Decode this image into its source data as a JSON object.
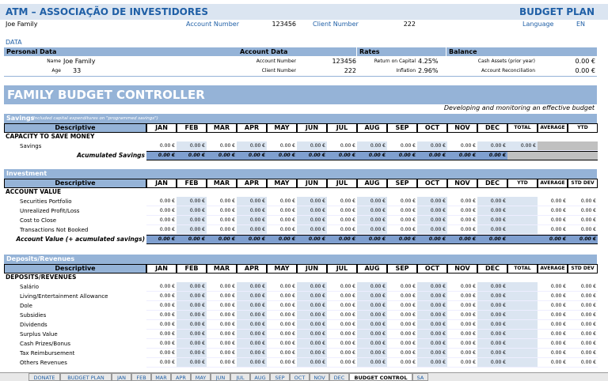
{
  "header": {
    "title": "ATM – ASSOCIAÇÃO DE INVESTIDORES",
    "plan": "BUDGET PLAN",
    "family": "Joe Family",
    "account_number_label": "Account Number",
    "account_number": 123456,
    "client_number_label": "Client Number",
    "client_number": 222,
    "language_label": "Language",
    "language": "EN"
  },
  "data_section": {
    "title": "DATA",
    "personal": {
      "title": "Personal Data",
      "name_label": "Name",
      "name": "Joe Family",
      "age_label": "Age",
      "age": 33
    },
    "account": {
      "title": "Account Data",
      "account_number_label": "Account Number",
      "account_number": 123456,
      "client_number_label": "Client Number",
      "client_number": 222
    },
    "rates": {
      "title": "Rates",
      "return_label": "Return on Capital",
      "return": "4.25%",
      "inflation_label": "Inflation",
      "inflation": "2.96%"
    },
    "balance": {
      "title": "Balance",
      "cash_label": "Cash Assets (prior year)",
      "cash": "0.00 €",
      "reconciliation_label": "Account Reconciliation",
      "reconciliation": "0.00 €"
    }
  },
  "banner": {
    "title": "FAMILY BUDGET CONTROLLER",
    "subtitle": "Developing and monitoring an effective budget"
  },
  "sections": [
    {
      "title": "Savings",
      "note": "(Included capital expenditures on \"programmed savings\")",
      "columns": [
        "Descriptive",
        "JAN",
        "FEB",
        "MAR",
        "APR",
        "MAY",
        "JUN",
        "JUL",
        "AUG",
        "SEP",
        "OCT",
        "NOV",
        "DEC",
        "TOTAL",
        "AVERAGE",
        "YTD"
      ],
      "group": "CAPACITY TO SAVE MONEY",
      "rows": [
        {
          "label": "Savings",
          "cells": [
            "0.00 €",
            "0.00 €",
            "0.00 €",
            "0.00 €",
            "0.00 €",
            "0.00 €",
            "0.00 €",
            "0.00 €",
            "0.00 €",
            "0.00 €",
            "0.00 €",
            "0.00 €",
            "0.00 €"
          ]
        }
      ],
      "total": {
        "label": "Acumulated Savings",
        "cells": [
          "0.00 €",
          "0.00 €",
          "0.00 €",
          "0.00 €",
          "0.00 €",
          "0.00 €",
          "0.00 €",
          "0.00 €",
          "0.00 €",
          "0.00 €",
          "0.00 €",
          "0.00 €"
        ]
      }
    },
    {
      "title": "Investment",
      "columns": [
        "Descriptive",
        "JAN",
        "FEB",
        "MAR",
        "APR",
        "MAY",
        "JUN",
        "JUL",
        "AUG",
        "SEP",
        "OCT",
        "NOV",
        "DEC",
        "YTD",
        "AVERAGE",
        "STD DEV"
      ],
      "group": "ACCOUNT VALUE",
      "rows": [
        {
          "label": "Securities Portfolio",
          "cells": [
            "0.00 €",
            "0.00 €",
            "0.00 €",
            "0.00 €",
            "0.00 €",
            "0.00 €",
            "0.00 €",
            "0.00 €",
            "0.00 €",
            "0.00 €",
            "0.00 €",
            "0.00 €",
            null,
            "0.00 €",
            "0.00 €"
          ]
        },
        {
          "label": "Unrealized Profit/Loss",
          "cells": [
            "0.00 €",
            "0.00 €",
            "0.00 €",
            "0.00 €",
            "0.00 €",
            "0.00 €",
            "0.00 €",
            "0.00 €",
            "0.00 €",
            "0.00 €",
            "0.00 €",
            "0.00 €",
            null,
            "0.00 €",
            "0.00 €"
          ]
        },
        {
          "label": "Cost to Close",
          "cells": [
            "0.00 €",
            "0.00 €",
            "0.00 €",
            "0.00 €",
            "0.00 €",
            "0.00 €",
            "0.00 €",
            "0.00 €",
            "0.00 €",
            "0.00 €",
            "0.00 €",
            "0.00 €",
            null,
            "0.00 €",
            "0.00 €"
          ]
        },
        {
          "label": "Transactions Not Booked",
          "cells": [
            "0.00 €",
            "0.00 €",
            "0.00 €",
            "0.00 €",
            "0.00 €",
            "0.00 €",
            "0.00 €",
            "0.00 €",
            "0.00 €",
            "0.00 €",
            "0.00 €",
            "0.00 €",
            null,
            "0.00 €",
            "0.00 €"
          ]
        }
      ],
      "total": {
        "label": "Account Value (+ acumulated savings)",
        "cells": [
          "0.00 €",
          "0.00 €",
          "0.00 €",
          "0.00 €",
          "0.00 €",
          "0.00 €",
          "0.00 €",
          "0.00 €",
          "0.00 €",
          "0.00 €",
          "0.00 €",
          "0.00 €",
          null,
          "0.00 €",
          "0.00 €"
        ]
      }
    },
    {
      "title": "Deposits/Revenues",
      "columns": [
        "Descriptive",
        "JAN",
        "FEB",
        "MAR",
        "APR",
        "MAY",
        "JUN",
        "JUL",
        "AUG",
        "SEP",
        "OCT",
        "NOV",
        "DEC",
        "TOTAL",
        "AVERAGE",
        "STD DEV"
      ],
      "group": "DEPOSITS/REVENUES",
      "rows": [
        {
          "label": "Salário",
          "cells": [
            "0.00 €",
            "0.00 €",
            "0.00 €",
            "0.00 €",
            "0.00 €",
            "0.00 €",
            "0.00 €",
            "0.00 €",
            "0.00 €",
            "0.00 €",
            "0.00 €",
            "0.00 €",
            null,
            "0.00 €",
            "0.00 €"
          ]
        },
        {
          "label": "Living/Entertainment Allowance",
          "cells": [
            "0.00 €",
            "0.00 €",
            "0.00 €",
            "0.00 €",
            "0.00 €",
            "0.00 €",
            "0.00 €",
            "0.00 €",
            "0.00 €",
            "0.00 €",
            "0.00 €",
            "0.00 €",
            null,
            "0.00 €",
            "0.00 €"
          ]
        },
        {
          "label": "Dole",
          "cells": [
            "0.00 €",
            "0.00 €",
            "0.00 €",
            "0.00 €",
            "0.00 €",
            "0.00 €",
            "0.00 €",
            "0.00 €",
            "0.00 €",
            "0.00 €",
            "0.00 €",
            "0.00 €",
            null,
            "0.00 €",
            "0.00 €"
          ]
        },
        {
          "label": "Subsidies",
          "cells": [
            "0.00 €",
            "0.00 €",
            "0.00 €",
            "0.00 €",
            "0.00 €",
            "0.00 €",
            "0.00 €",
            "0.00 €",
            "0.00 €",
            "0.00 €",
            "0.00 €",
            "0.00 €",
            null,
            "0.00 €",
            "0.00 €"
          ]
        },
        {
          "label": "Dividends",
          "cells": [
            "0.00 €",
            "0.00 €",
            "0.00 €",
            "0.00 €",
            "0.00 €",
            "0.00 €",
            "0.00 €",
            "0.00 €",
            "0.00 €",
            "0.00 €",
            "0.00 €",
            "0.00 €",
            null,
            "0.00 €",
            "0.00 €"
          ]
        },
        {
          "label": "Surplus Value",
          "cells": [
            "0.00 €",
            "0.00 €",
            "0.00 €",
            "0.00 €",
            "0.00 €",
            "0.00 €",
            "0.00 €",
            "0.00 €",
            "0.00 €",
            "0.00 €",
            "0.00 €",
            "0.00 €",
            null,
            "0.00 €",
            "0.00 €"
          ]
        },
        {
          "label": "Cash Prizes/Bonus",
          "cells": [
            "0.00 €",
            "0.00 €",
            "0.00 €",
            "0.00 €",
            "0.00 €",
            "0.00 €",
            "0.00 €",
            "0.00 €",
            "0.00 €",
            "0.00 €",
            "0.00 €",
            "0.00 €",
            null,
            "0.00 €",
            "0.00 €"
          ]
        },
        {
          "label": "Tax Reimbursement",
          "cells": [
            "0.00 €",
            "0.00 €",
            "0.00 €",
            "0.00 €",
            "0.00 €",
            "0.00 €",
            "0.00 €",
            "0.00 €",
            "0.00 €",
            "0.00 €",
            "0.00 €",
            "0.00 €",
            null,
            "0.00 €",
            "0.00 €"
          ]
        },
        {
          "label": "Others Revenues",
          "cells": [
            "0.00 €",
            "0.00 €",
            "0.00 €",
            "0.00 €",
            "0.00 €",
            "0.00 €",
            "0.00 €",
            "0.00 €",
            "0.00 €",
            "0.00 €",
            "0.00 €",
            "0.00 €",
            null,
            "0.00 €",
            "0.00 €"
          ]
        }
      ]
    }
  ],
  "tabs": [
    "DONATE",
    "BUDGET PLAN",
    "JAN",
    "FEB",
    "MAR",
    "APR",
    "MAY",
    "JUN",
    "JUL",
    "AUG",
    "SEP",
    "OCT",
    "NOV",
    "DEC",
    "BUDGET CONTROL",
    "SA"
  ]
}
